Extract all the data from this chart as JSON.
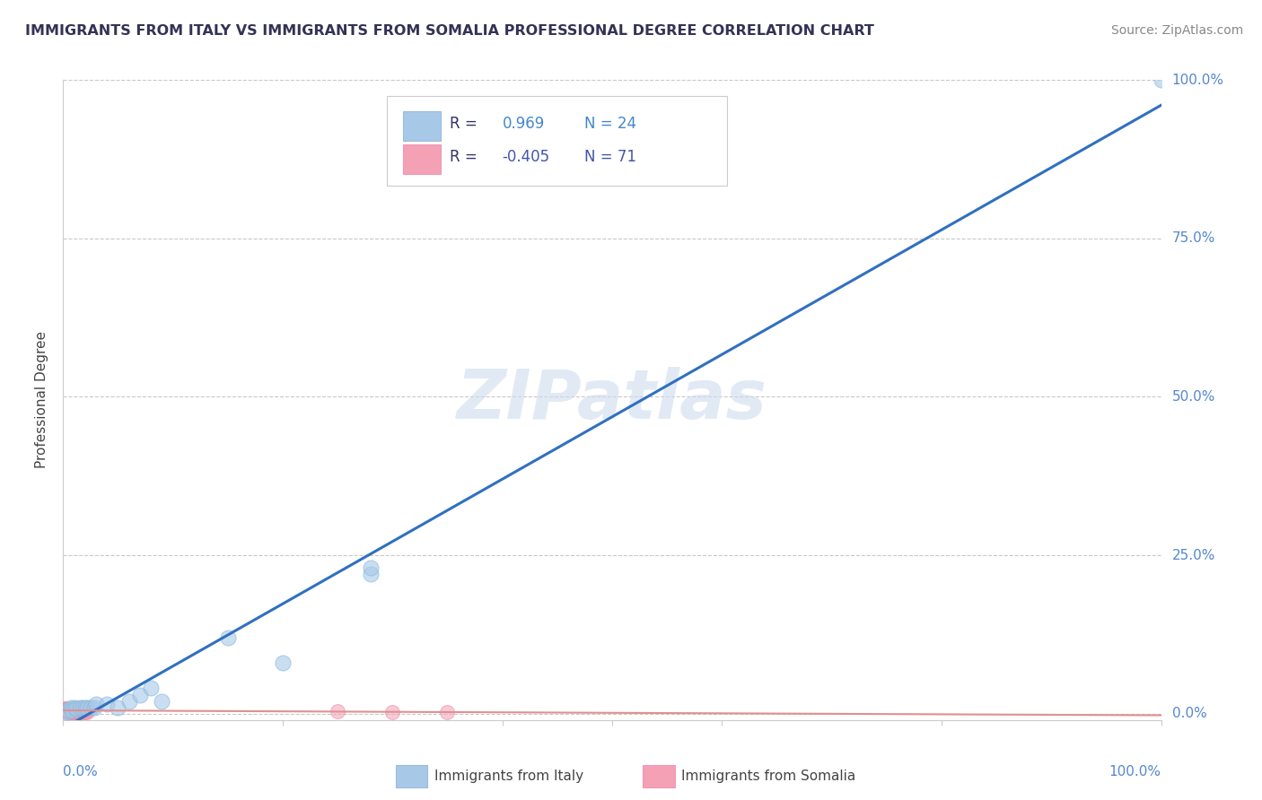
{
  "title": "IMMIGRANTS FROM ITALY VS IMMIGRANTS FROM SOMALIA PROFESSIONAL DEGREE CORRELATION CHART",
  "source": "Source: ZipAtlas.com",
  "ylabel": "Professional Degree",
  "watermark": "ZIPatlas",
  "italy_R": 0.969,
  "italy_N": 24,
  "somalia_R": -0.405,
  "somalia_N": 71,
  "italy_color": "#a8c8e8",
  "somalia_color": "#f4a0b5",
  "italy_line_color": "#3070c0",
  "somalia_line_color": "#e09090",
  "background_color": "#ffffff",
  "grid_color": "#bbbbbb",
  "title_color": "#333355",
  "axis_label_color": "#5588cc",
  "legend_color_italy": "#4488cc",
  "legend_color_somalia": "#4455aa",
  "italy_scatter_x": [
    0.003,
    0.005,
    0.007,
    0.008,
    0.01,
    0.012,
    0.015,
    0.018,
    0.02,
    0.022,
    0.025,
    0.028,
    0.03,
    0.04,
    0.05,
    0.06,
    0.07,
    0.08,
    0.09,
    0.15,
    0.2,
    0.28,
    0.28,
    1.0
  ],
  "italy_scatter_y": [
    0.003,
    0.005,
    0.01,
    0.005,
    0.01,
    0.008,
    0.01,
    0.01,
    0.01,
    0.01,
    0.01,
    0.01,
    0.015,
    0.015,
    0.01,
    0.02,
    0.03,
    0.04,
    0.02,
    0.12,
    0.08,
    0.22,
    0.23,
    1.0
  ],
  "somalia_scatter_x": [
    0.001,
    0.002,
    0.003,
    0.004,
    0.005,
    0.005,
    0.006,
    0.006,
    0.007,
    0.007,
    0.008,
    0.008,
    0.009,
    0.009,
    0.01,
    0.01,
    0.011,
    0.011,
    0.012,
    0.012,
    0.013,
    0.013,
    0.014,
    0.014,
    0.015,
    0.015,
    0.016,
    0.016,
    0.017,
    0.017,
    0.018,
    0.018,
    0.019,
    0.019,
    0.02,
    0.02,
    0.021,
    0.021,
    0.022,
    0.022,
    0.003,
    0.004,
    0.005,
    0.006,
    0.007,
    0.008,
    0.009,
    0.01,
    0.011,
    0.012,
    0.013,
    0.014,
    0.015,
    0.016,
    0.017,
    0.001,
    0.002,
    0.003,
    0.004,
    0.005,
    0.006,
    0.007,
    0.008,
    0.009,
    0.01,
    0.011,
    0.012,
    0.013,
    0.25,
    0.3,
    0.35
  ],
  "somalia_scatter_y": [
    0.006,
    0.005,
    0.008,
    0.003,
    0.006,
    0.004,
    0.007,
    0.003,
    0.006,
    0.004,
    0.007,
    0.003,
    0.006,
    0.004,
    0.007,
    0.003,
    0.006,
    0.004,
    0.007,
    0.003,
    0.006,
    0.004,
    0.007,
    0.003,
    0.006,
    0.004,
    0.007,
    0.003,
    0.006,
    0.004,
    0.007,
    0.003,
    0.006,
    0.004,
    0.007,
    0.003,
    0.006,
    0.004,
    0.007,
    0.003,
    0.008,
    0.006,
    0.005,
    0.004,
    0.005,
    0.003,
    0.006,
    0.004,
    0.007,
    0.005,
    0.003,
    0.006,
    0.004,
    0.007,
    0.005,
    0.008,
    0.006,
    0.004,
    0.005,
    0.003,
    0.006,
    0.004,
    0.007,
    0.005,
    0.003,
    0.006,
    0.004,
    0.007,
    0.004,
    0.003,
    0.002
  ],
  "xlim": [
    0.0,
    1.0
  ],
  "ylim": [
    -0.01,
    1.0
  ],
  "yticks": [
    0.0,
    0.25,
    0.5,
    0.75,
    1.0
  ],
  "ytick_labels": [
    "0.0%",
    "25.0%",
    "50.0%",
    "75.0%",
    "100.0%"
  ],
  "xticks": [
    0.0,
    0.2,
    0.4,
    0.5,
    0.6,
    0.8,
    1.0
  ]
}
